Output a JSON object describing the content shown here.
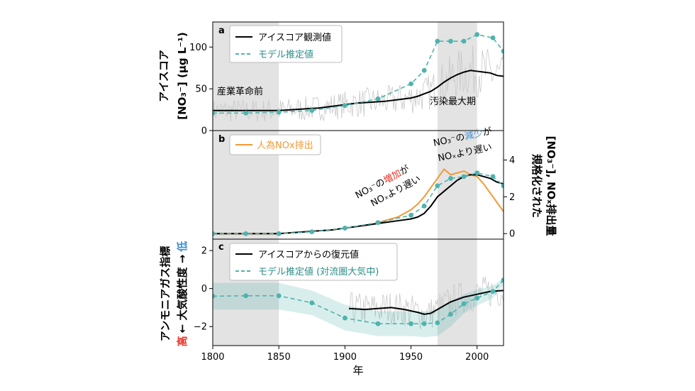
{
  "xaxis": {
    "label": "年",
    "range": [
      1800,
      2020
    ],
    "ticks": [
      1800,
      1850,
      1900,
      1950,
      2000
    ]
  },
  "gray_periods": [
    [
      1800,
      1850
    ],
    [
      1970,
      2000
    ]
  ],
  "colors": {
    "black": "#000000",
    "teal": "#4fb3ad",
    "orange": "#f39a34",
    "gray": "#c8c8c8",
    "shade": "#e3e3e3",
    "red": "#e8342a",
    "blue": "#3d8fd4"
  },
  "panel_a": {
    "label": "a",
    "ylabel_line1": "アイスコア",
    "ylabel_line2": "[NO₃⁻] (μg L⁻¹)",
    "ylim": [
      0,
      130
    ],
    "yticks": [
      0,
      50,
      100
    ],
    "legend": [
      "アイスコア観測値",
      "モデル推定値"
    ],
    "annotations": [
      "産業革命前",
      "汚染最大期"
    ]
  },
  "panel_b": {
    "label": "b",
    "ylabel_line1": "規格化された",
    "ylabel_line2": "[NO₃⁻], NOₓ排出量",
    "ylim": [
      -0.3,
      5.6
    ],
    "yticks": [
      0,
      2,
      4
    ],
    "legend": [
      "人為NOx排出"
    ],
    "annotation_left": {
      "prefix": "NO₃⁻の",
      "emph": "増加",
      "suffix": "が",
      "line2": "NOₓより遅い"
    },
    "annotation_right": {
      "prefix": "NO₃⁻の",
      "emph": "減少",
      "suffix": "が",
      "line2": "NOₓより遅い"
    }
  },
  "panel_c": {
    "label": "c",
    "ylabel_line1": "アンモニアガス指標",
    "ylabel_high": "高",
    "ylabel_mid": "← 大気酸性度 →",
    "ylabel_low": "低",
    "ylim": [
      -3,
      2.6
    ],
    "yticks": [
      -2,
      0,
      2
    ],
    "legend": [
      "アイスコアからの復元値",
      "モデル推定値 (対流圏大気中)"
    ]
  },
  "chart_data": [
    {
      "type": "line",
      "panel": "a",
      "x_range": [
        1800,
        2020
      ],
      "ylim": [
        0,
        130
      ],
      "series": [
        {
          "name": "アイスコア観測値",
          "style": "solid",
          "x": [
            1800,
            1820,
            1840,
            1850,
            1860,
            1870,
            1880,
            1890,
            1900,
            1910,
            1920,
            1930,
            1940,
            1950,
            1955,
            1960,
            1965,
            1970,
            1975,
            1980,
            1985,
            1990,
            1995,
            2000,
            2005,
            2010,
            2015,
            2020
          ],
          "values": [
            24,
            24,
            24,
            24,
            25,
            26,
            27,
            29,
            31,
            33,
            34,
            35,
            37,
            39,
            41,
            44,
            47,
            52,
            58,
            63,
            67,
            70,
            72,
            71,
            70,
            69,
            66,
            65
          ]
        },
        {
          "name": "モデル推定値",
          "style": "dashed-markers",
          "x": [
            1800,
            1825,
            1850,
            1875,
            1900,
            1925,
            1950,
            1960,
            1970,
            1980,
            1990,
            2000,
            2012,
            2020
          ],
          "values": [
            21,
            21,
            22,
            24,
            30,
            38,
            56,
            72,
            107,
            107,
            107,
            115,
            111,
            95
          ]
        }
      ]
    },
    {
      "type": "line",
      "panel": "b",
      "x_range": [
        1800,
        2020
      ],
      "ylim": [
        -0.3,
        5.6
      ],
      "series": [
        {
          "name": "人為NOx排出",
          "style": "solid",
          "x": [
            1800,
            1850,
            1870,
            1890,
            1900,
            1910,
            1920,
            1930,
            1940,
            1950,
            1955,
            1960,
            1965,
            1970,
            1975,
            1980,
            1985,
            1990,
            1995,
            2000,
            2005,
            2010,
            2015,
            2020
          ],
          "values": [
            0,
            0,
            0.1,
            0.2,
            0.3,
            0.4,
            0.5,
            0.7,
            0.9,
            1.3,
            1.6,
            2.0,
            2.5,
            3.0,
            3.5,
            3.2,
            3.3,
            3.4,
            3.2,
            3.1,
            2.7,
            2.2,
            1.7,
            1.2
          ]
        },
        {
          "name": "アイスコア観測値",
          "style": "solid",
          "x": [
            1800,
            1850,
            1870,
            1890,
            1900,
            1910,
            1920,
            1930,
            1940,
            1950,
            1955,
            1960,
            1965,
            1970,
            1975,
            1980,
            1985,
            1990,
            1995,
            2000,
            2005,
            2010,
            2015,
            2020
          ],
          "values": [
            0,
            0,
            0.1,
            0.2,
            0.3,
            0.4,
            0.5,
            0.6,
            0.7,
            0.8,
            0.9,
            1.1,
            1.5,
            2.0,
            2.3,
            2.6,
            2.9,
            3.1,
            3.2,
            3.2,
            3.1,
            3.0,
            2.8,
            2.7
          ]
        },
        {
          "name": "モデル推定値",
          "style": "dashed-markers",
          "x": [
            1800,
            1825,
            1850,
            1875,
            1900,
            1925,
            1950,
            1960,
            1970,
            1980,
            1990,
            2000,
            2012,
            2020
          ],
          "values": [
            0,
            0,
            0,
            0.1,
            0.3,
            0.6,
            1.0,
            1.5,
            2.6,
            3.0,
            3.1,
            3.3,
            3.1,
            2.6
          ]
        }
      ]
    },
    {
      "type": "line",
      "panel": "c",
      "x_range": [
        1800,
        2020
      ],
      "ylim": [
        -3,
        2.6
      ],
      "series": [
        {
          "name": "アイスコアからの復元値",
          "style": "solid",
          "x": [
            1903,
            1915,
            1925,
            1935,
            1945,
            1955,
            1960,
            1965,
            1970,
            1980,
            1990,
            2000,
            2010,
            2020
          ],
          "values": [
            -1.05,
            -1.1,
            -1.05,
            -1.0,
            -1.1,
            -1.25,
            -1.35,
            -1.3,
            -1.1,
            -0.7,
            -0.45,
            -0.3,
            -0.15,
            -0.1
          ]
        },
        {
          "name": "モデル推定値 (対流圏大気中)",
          "style": "dashed-markers",
          "x": [
            1800,
            1825,
            1850,
            1875,
            1900,
            1925,
            1950,
            1960,
            1970,
            1980,
            1990,
            2000,
            2012,
            2020
          ],
          "values": [
            -0.4,
            -0.38,
            -0.38,
            -0.75,
            -1.55,
            -1.85,
            -1.85,
            -1.85,
            -1.8,
            -1.35,
            -0.8,
            -0.5,
            -0.15,
            0.45
          ],
          "band_lower": [
            -1.1,
            -1.1,
            -1.1,
            -1.4,
            -2.2,
            -2.5,
            -2.5,
            -2.55,
            -2.5,
            -2.0,
            -1.3,
            -0.9,
            -0.5,
            0.2
          ],
          "band_upper": [
            0.3,
            0.3,
            0.3,
            -0.1,
            -0.85,
            -1.2,
            -1.2,
            -1.2,
            -1.1,
            -0.7,
            -0.3,
            -0.05,
            0.15,
            0.55
          ]
        }
      ]
    }
  ]
}
